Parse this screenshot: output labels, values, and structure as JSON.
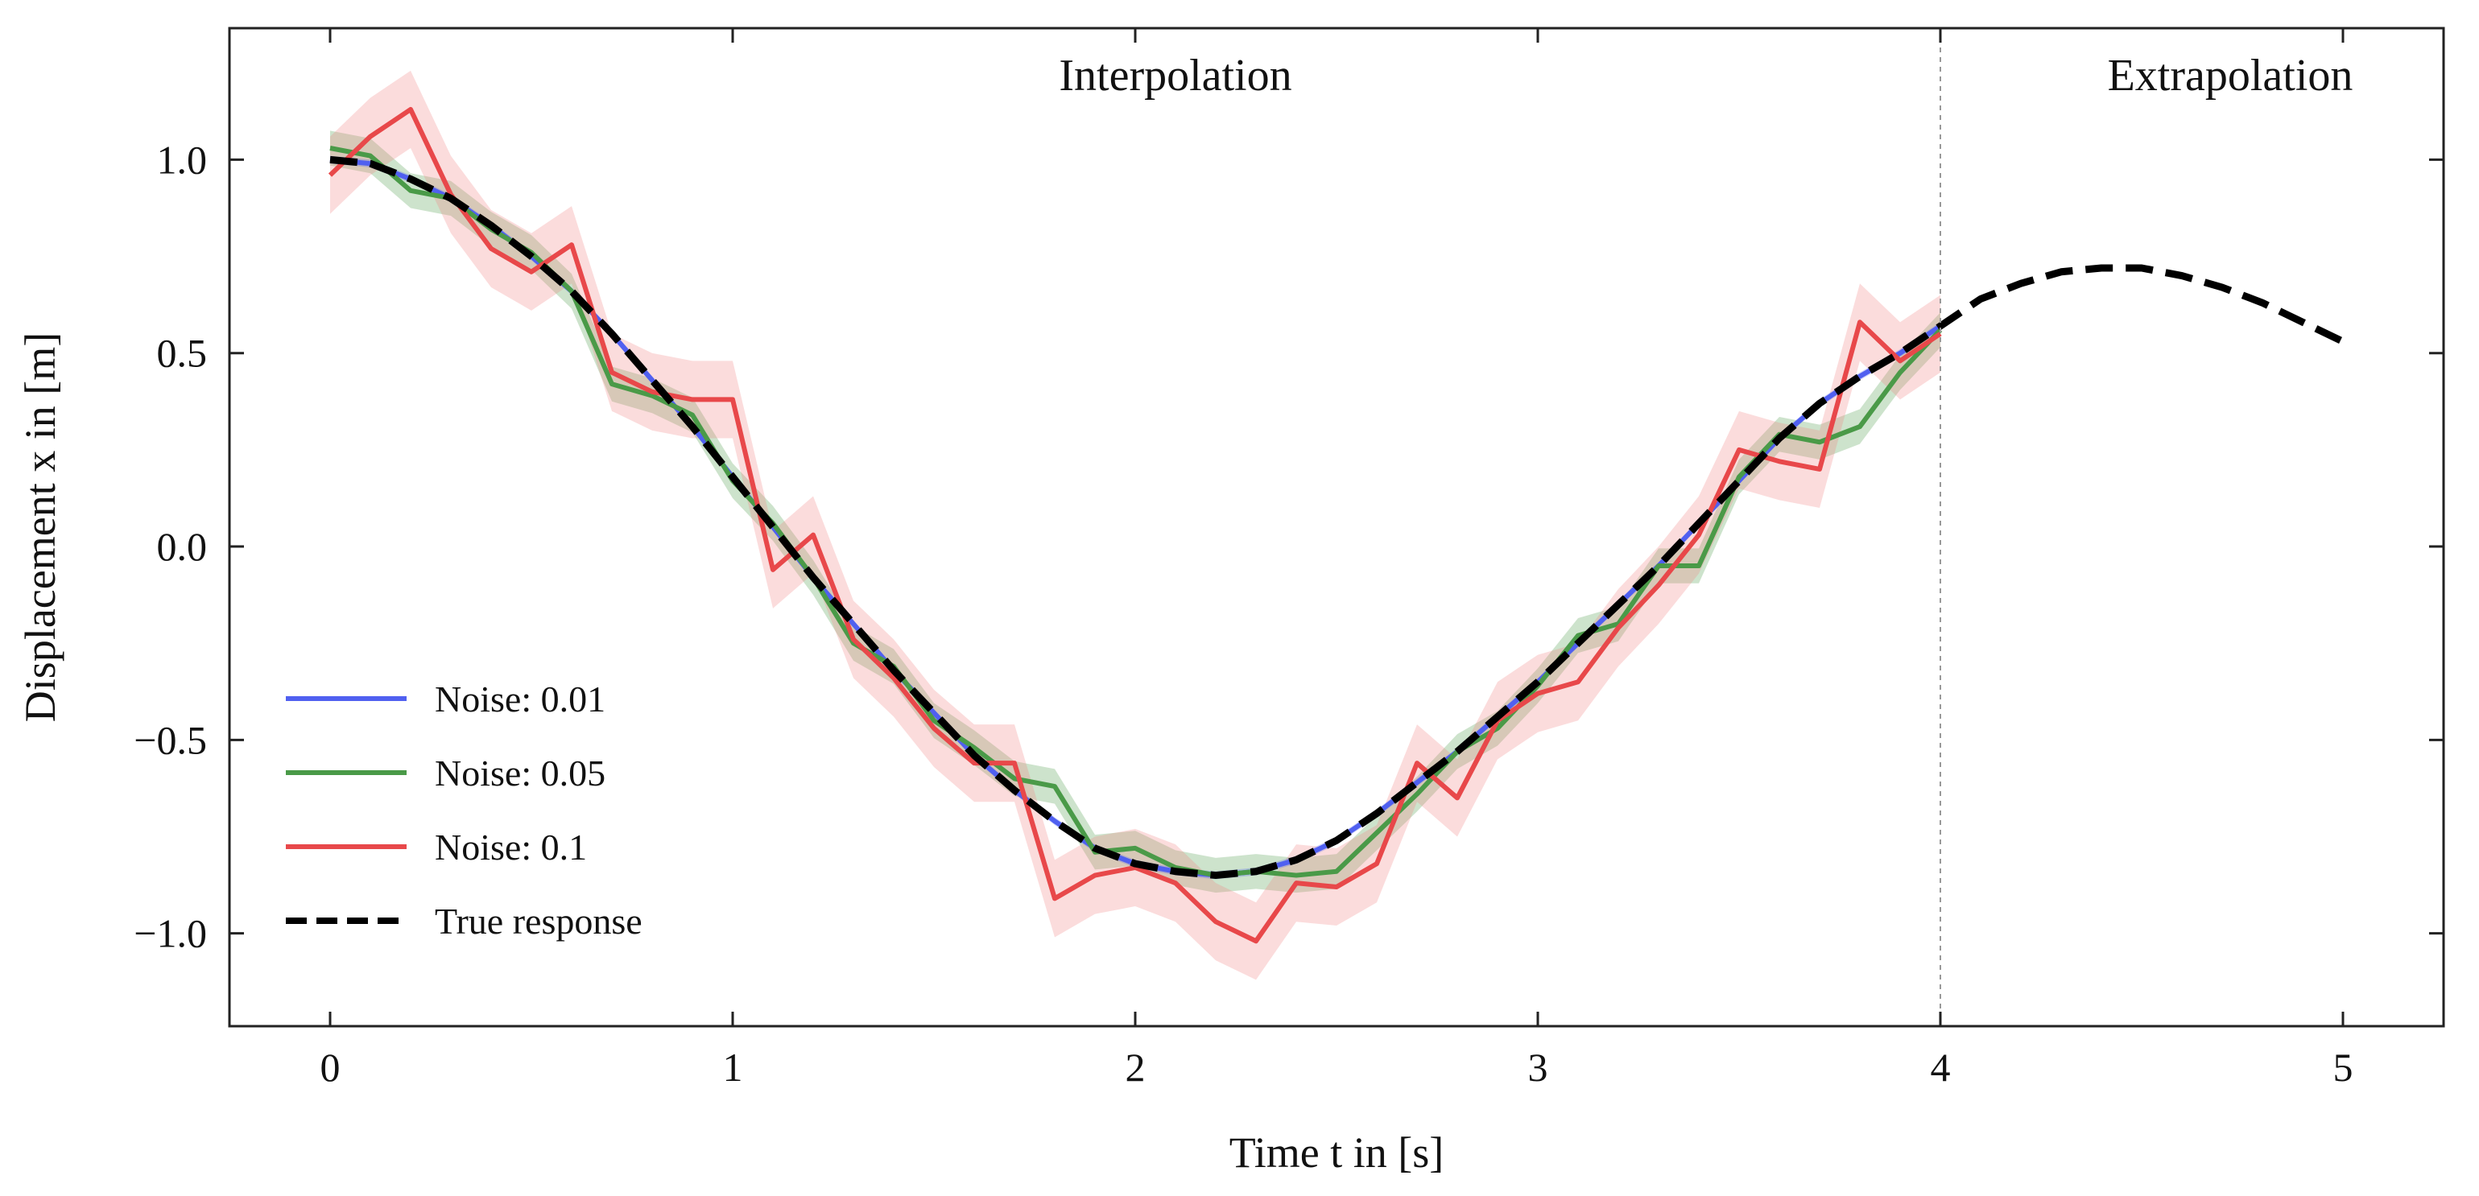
{
  "chart_data": {
    "type": "line",
    "xlabel": "Time t in [s]",
    "ylabel": "Displacement x in [m]",
    "xlim": [
      -0.25,
      5.25
    ],
    "ylim": [
      -1.24,
      1.34
    ],
    "xticks": [
      0,
      1,
      2,
      3,
      4,
      5
    ],
    "xtick_labels": [
      "0",
      "1",
      "2",
      "3",
      "4",
      "5"
    ],
    "yticks": [
      1.0,
      0.5,
      0.0,
      -0.5,
      -1.0
    ],
    "ytick_labels": [
      "1.0",
      "0.5",
      "0.0",
      "−0.5",
      "−1.0"
    ],
    "grid": false,
    "legend_position": "lower-left",
    "annotations": [
      {
        "id": "interpolation",
        "text": "Interpolation",
        "x": 2.1,
        "y": 1.18
      },
      {
        "id": "extrapolation",
        "text": "Extrapolation",
        "x": 4.72,
        "y": 1.18
      }
    ],
    "divider_x": 4.0,
    "series": [
      {
        "name": "Noise: 0.01",
        "color": "#5060f0",
        "band_color": "#5060f0",
        "band_half_width": 0.01,
        "x": [
          0.0,
          0.1,
          0.2,
          0.3,
          0.4,
          0.5,
          0.6,
          0.7,
          0.8,
          0.9,
          1.0,
          1.1,
          1.2,
          1.3,
          1.4,
          1.5,
          1.6,
          1.7,
          1.8,
          1.9,
          2.0,
          2.1,
          2.2,
          2.3,
          2.4,
          2.5,
          2.6,
          2.7,
          2.8,
          2.9,
          3.0,
          3.1,
          3.2,
          3.3,
          3.4,
          3.5,
          3.6,
          3.7,
          3.8,
          3.9,
          4.0
        ],
        "y": [
          1.0,
          0.99,
          0.95,
          0.9,
          0.83,
          0.75,
          0.66,
          0.55,
          0.43,
          0.31,
          0.18,
          0.05,
          -0.08,
          -0.2,
          -0.32,
          -0.43,
          -0.54,
          -0.63,
          -0.71,
          -0.78,
          -0.82,
          -0.84,
          -0.85,
          -0.84,
          -0.81,
          -0.76,
          -0.69,
          -0.61,
          -0.53,
          -0.44,
          -0.35,
          -0.25,
          -0.15,
          -0.05,
          0.06,
          0.17,
          0.28,
          0.37,
          0.44,
          0.5,
          0.57
        ]
      },
      {
        "name": "Noise: 0.05",
        "color": "#4a9a48",
        "band_color": "#4a9a48",
        "band_half_width": 0.045,
        "x": [
          0.0,
          0.1,
          0.2,
          0.3,
          0.4,
          0.5,
          0.6,
          0.7,
          0.8,
          0.9,
          1.0,
          1.1,
          1.2,
          1.3,
          1.4,
          1.5,
          1.6,
          1.7,
          1.8,
          1.9,
          2.0,
          2.1,
          2.2,
          2.3,
          2.4,
          2.5,
          2.6,
          2.7,
          2.8,
          2.9,
          3.0,
          3.1,
          3.2,
          3.3,
          3.4,
          3.5,
          3.6,
          3.7,
          3.8,
          3.9,
          4.0
        ],
        "y": [
          1.03,
          1.01,
          0.92,
          0.9,
          0.82,
          0.76,
          0.66,
          0.42,
          0.39,
          0.34,
          0.17,
          0.06,
          -0.08,
          -0.25,
          -0.31,
          -0.45,
          -0.52,
          -0.6,
          -0.62,
          -0.79,
          -0.78,
          -0.83,
          -0.85,
          -0.84,
          -0.85,
          -0.84,
          -0.74,
          -0.64,
          -0.53,
          -0.47,
          -0.36,
          -0.23,
          -0.2,
          -0.05,
          -0.05,
          0.18,
          0.29,
          0.27,
          0.31,
          0.45,
          0.56
        ]
      },
      {
        "name": "Noise: 0.1",
        "color": "#e8484a",
        "band_color": "#f08080",
        "band_half_width": 0.1,
        "x": [
          0.0,
          0.1,
          0.2,
          0.3,
          0.4,
          0.5,
          0.6,
          0.7,
          0.8,
          0.9,
          1.0,
          1.1,
          1.2,
          1.3,
          1.4,
          1.5,
          1.6,
          1.7,
          1.8,
          1.9,
          2.0,
          2.1,
          2.2,
          2.3,
          2.4,
          2.5,
          2.6,
          2.7,
          2.8,
          2.9,
          3.0,
          3.1,
          3.2,
          3.3,
          3.4,
          3.5,
          3.6,
          3.7,
          3.8,
          3.9,
          4.0
        ],
        "y": [
          0.96,
          1.06,
          1.13,
          0.91,
          0.77,
          0.71,
          0.78,
          0.45,
          0.4,
          0.38,
          0.38,
          -0.06,
          0.03,
          -0.24,
          -0.34,
          -0.47,
          -0.56,
          -0.56,
          -0.91,
          -0.85,
          -0.83,
          -0.87,
          -0.97,
          -1.02,
          -0.87,
          -0.88,
          -0.82,
          -0.56,
          -0.65,
          -0.45,
          -0.38,
          -0.35,
          -0.21,
          -0.1,
          0.03,
          0.25,
          0.22,
          0.2,
          0.58,
          0.48,
          0.55
        ]
      },
      {
        "name": "True response",
        "color": "#000000",
        "dashed": true,
        "x": [
          0.0,
          0.1,
          0.2,
          0.3,
          0.4,
          0.5,
          0.6,
          0.7,
          0.8,
          0.9,
          1.0,
          1.1,
          1.2,
          1.3,
          1.4,
          1.5,
          1.6,
          1.7,
          1.8,
          1.9,
          2.0,
          2.1,
          2.2,
          2.3,
          2.4,
          2.5,
          2.6,
          2.7,
          2.8,
          2.9,
          3.0,
          3.1,
          3.2,
          3.3,
          3.4,
          3.5,
          3.6,
          3.7,
          3.8,
          3.9,
          4.0,
          4.1,
          4.2,
          4.3,
          4.4,
          4.5,
          4.6,
          4.7,
          4.8,
          4.9,
          5.0
        ],
        "y": [
          1.0,
          0.99,
          0.95,
          0.9,
          0.83,
          0.75,
          0.66,
          0.55,
          0.43,
          0.31,
          0.18,
          0.05,
          -0.08,
          -0.2,
          -0.32,
          -0.43,
          -0.54,
          -0.63,
          -0.71,
          -0.78,
          -0.82,
          -0.84,
          -0.85,
          -0.84,
          -0.81,
          -0.76,
          -0.69,
          -0.61,
          -0.53,
          -0.44,
          -0.35,
          -0.25,
          -0.15,
          -0.05,
          0.06,
          0.17,
          0.28,
          0.37,
          0.44,
          0.5,
          0.57,
          0.64,
          0.68,
          0.71,
          0.72,
          0.72,
          0.7,
          0.67,
          0.63,
          0.58,
          0.53
        ]
      }
    ]
  }
}
